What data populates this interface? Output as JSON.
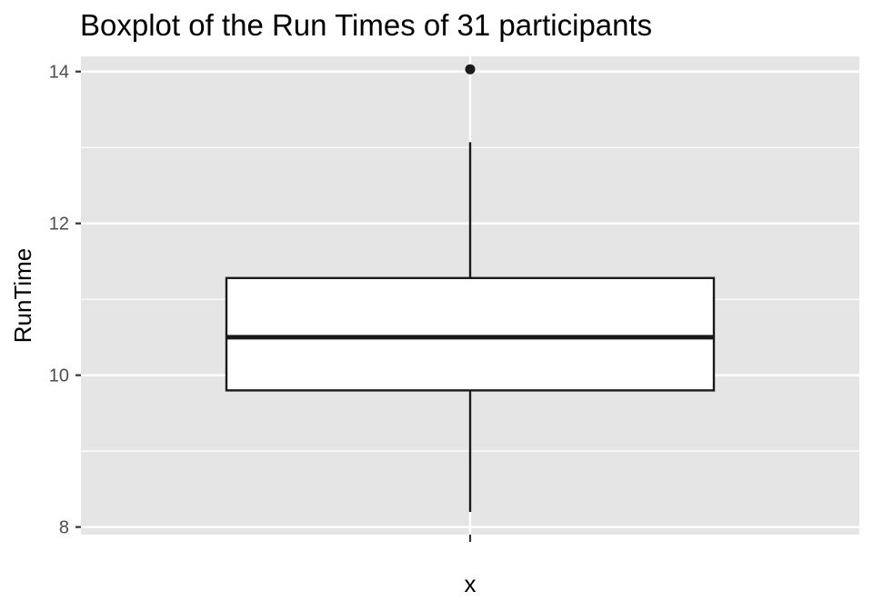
{
  "chart_data": {
    "type": "boxplot",
    "title": "Boxplot of the Run Times of 31 participants",
    "xlabel": "x",
    "ylabel": "RunTime",
    "ylim": [
      7.9,
      14.2
    ],
    "y_ticks": [
      8,
      10,
      12,
      14
    ],
    "y_tick_labels": [
      "8",
      "10",
      "12",
      "14"
    ],
    "y_minor_ticks": [
      9,
      11,
      13
    ],
    "grid": true,
    "box": {
      "whisker_low": 8.2,
      "q1": 9.8,
      "median": 10.5,
      "q3": 11.28,
      "whisker_high": 13.07,
      "outliers": [
        14.03
      ]
    },
    "colors": {
      "panel_background": "#e5e5e5",
      "grid": "#ffffff",
      "box_fill": "#ffffff",
      "box_line": "#1a1a1a",
      "tick_text": "#4d4d4d"
    }
  }
}
